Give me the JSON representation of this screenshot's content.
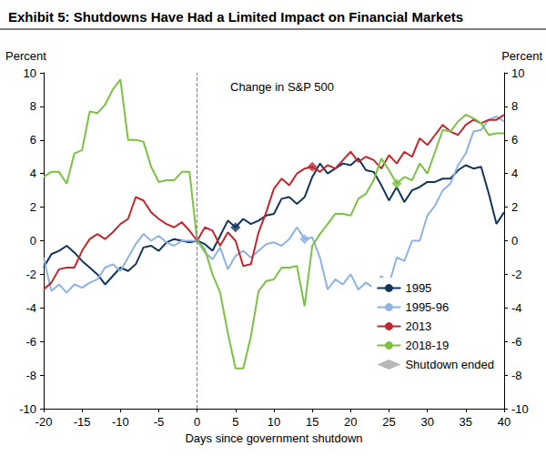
{
  "chart_data": {
    "type": "line",
    "title": "Exhibit 5: Shutdowns Have Had a Limited Impact on Financial Markets",
    "annotation": "Change in S&P 500",
    "xlabel": "Days since government shutdown",
    "ylabel": "Percent",
    "y2label": "Percent",
    "x": [
      -20,
      -19,
      -18,
      -17,
      -16,
      -15,
      -14,
      -13,
      -12,
      -11,
      -10,
      -9,
      -8,
      -7,
      -6,
      -5,
      -4,
      -3,
      -2,
      -1,
      0,
      1,
      2,
      3,
      4,
      5,
      6,
      7,
      8,
      9,
      10,
      11,
      12,
      13,
      14,
      15,
      16,
      17,
      18,
      19,
      20,
      21,
      22,
      23,
      24,
      25,
      26,
      27,
      28,
      29,
      30,
      31,
      32,
      33,
      34,
      35,
      36,
      37,
      38,
      39,
      40
    ],
    "xlim": [
      -20,
      40
    ],
    "xticks": [
      -20,
      -15,
      -10,
      -5,
      0,
      5,
      10,
      15,
      20,
      25,
      30,
      35,
      40
    ],
    "ylim": [
      -10,
      10
    ],
    "yticks": [
      -10,
      -8,
      -6,
      -4,
      -2,
      0,
      2,
      4,
      6,
      8,
      10
    ],
    "y2lim": [
      -10,
      10
    ],
    "y2ticks": [
      -10,
      -8,
      -6,
      -4,
      -2,
      0,
      2,
      4,
      6,
      8,
      10
    ],
    "grid": false,
    "legend": "lower right",
    "line_style": "solid",
    "shutdown_day": 0,
    "shutdown_ended": {
      "label": "Shutdown ended",
      "color": "#a6a6a6",
      "marker": "diamond"
    },
    "series": [
      {
        "name": "1995",
        "color": "#12355b",
        "ended": 5,
        "values": [
          -1.6,
          -0.8,
          -0.6,
          -0.3,
          -0.7,
          -1.2,
          -1.6,
          -2.0,
          -2.6,
          -2.1,
          -1.6,
          -1.8,
          -1.4,
          -0.4,
          -0.3,
          -0.6,
          -0.1,
          0.1,
          0.0,
          -0.1,
          0.0,
          -0.2,
          -0.6,
          0.3,
          1.2,
          0.8,
          1.3,
          1.0,
          1.2,
          1.5,
          1.6,
          2.5,
          2.6,
          2.2,
          2.6,
          3.8,
          4.6,
          4.0,
          4.3,
          4.6,
          4.5,
          4.9,
          4.2,
          4.1,
          3.3,
          2.4,
          3.2,
          2.3,
          3.0,
          3.2,
          3.5,
          3.5,
          3.7,
          3.7,
          4.2,
          4.5,
          4.3,
          4.4,
          2.8,
          1.0,
          1.7
        ]
      },
      {
        "name": "1995-96",
        "color": "#8db3e2",
        "ended": 14,
        "values": [
          -1.0,
          -3.0,
          -2.6,
          -3.1,
          -2.6,
          -2.8,
          -2.5,
          -2.3,
          -1.6,
          -1.4,
          -1.8,
          -1.0,
          -0.2,
          0.4,
          0.0,
          0.3,
          -0.1,
          -0.3,
          0.0,
          0.0,
          0.0,
          -0.7,
          -1.1,
          -0.4,
          -1.7,
          -0.9,
          -0.6,
          -1.0,
          -0.6,
          -0.2,
          -0.1,
          -0.3,
          0.1,
          0.8,
          0.1,
          0.2,
          -1.0,
          -2.9,
          -2.3,
          -2.6,
          -2.0,
          -2.9,
          -2.5,
          -2.8,
          -2.1,
          -2.6,
          -1.0,
          -1.2,
          0.0,
          0.0,
          1.5,
          2.1,
          3.0,
          3.4,
          4.5,
          5.2,
          6.5,
          6.6,
          7.2,
          7.4,
          7.1
        ]
      },
      {
        "name": "2013",
        "color": "#c0282d",
        "ended": 15,
        "values": [
          -2.9,
          -2.5,
          -1.7,
          -1.6,
          -1.6,
          -0.6,
          0.1,
          0.4,
          0.1,
          0.5,
          1.0,
          1.3,
          2.6,
          2.4,
          1.7,
          1.3,
          1.0,
          0.8,
          1.1,
          0.6,
          0.0,
          0.8,
          0.6,
          -0.3,
          0.5,
          0.0,
          -1.5,
          -1.4,
          0.5,
          1.7,
          3.1,
          3.7,
          3.3,
          4.0,
          4.3,
          4.4,
          4.1,
          4.5,
          4.3,
          4.8,
          5.3,
          4.7,
          5.0,
          4.8,
          4.3,
          5.1,
          4.6,
          5.3,
          5.0,
          6.1,
          5.7,
          6.3,
          6.9,
          6.5,
          6.3,
          6.9,
          7.2,
          7.0,
          7.2,
          7.2,
          7.5
        ]
      },
      {
        "name": "2018-19",
        "color": "#7cc242",
        "ended": 26,
        "values": [
          3.8,
          4.1,
          4.1,
          3.4,
          5.2,
          5.4,
          7.7,
          7.6,
          8.1,
          9.0,
          9.6,
          6.0,
          6.0,
          5.9,
          4.4,
          3.5,
          3.6,
          3.6,
          4.1,
          4.1,
          0.0,
          -0.5,
          -2.0,
          -3.1,
          -5.5,
          -7.6,
          -7.6,
          -5.7,
          -3.0,
          -2.4,
          -2.3,
          -1.6,
          -1.6,
          -1.5,
          -3.9,
          -0.3,
          0.4,
          1.0,
          1.6,
          1.6,
          1.5,
          2.5,
          2.8,
          3.6,
          4.9,
          4.2,
          3.4,
          3.8,
          3.6,
          4.6,
          4.0,
          5.3,
          6.6,
          6.5,
          7.1,
          7.5,
          7.3,
          7.0,
          6.3,
          6.4,
          6.4
        ]
      }
    ]
  }
}
